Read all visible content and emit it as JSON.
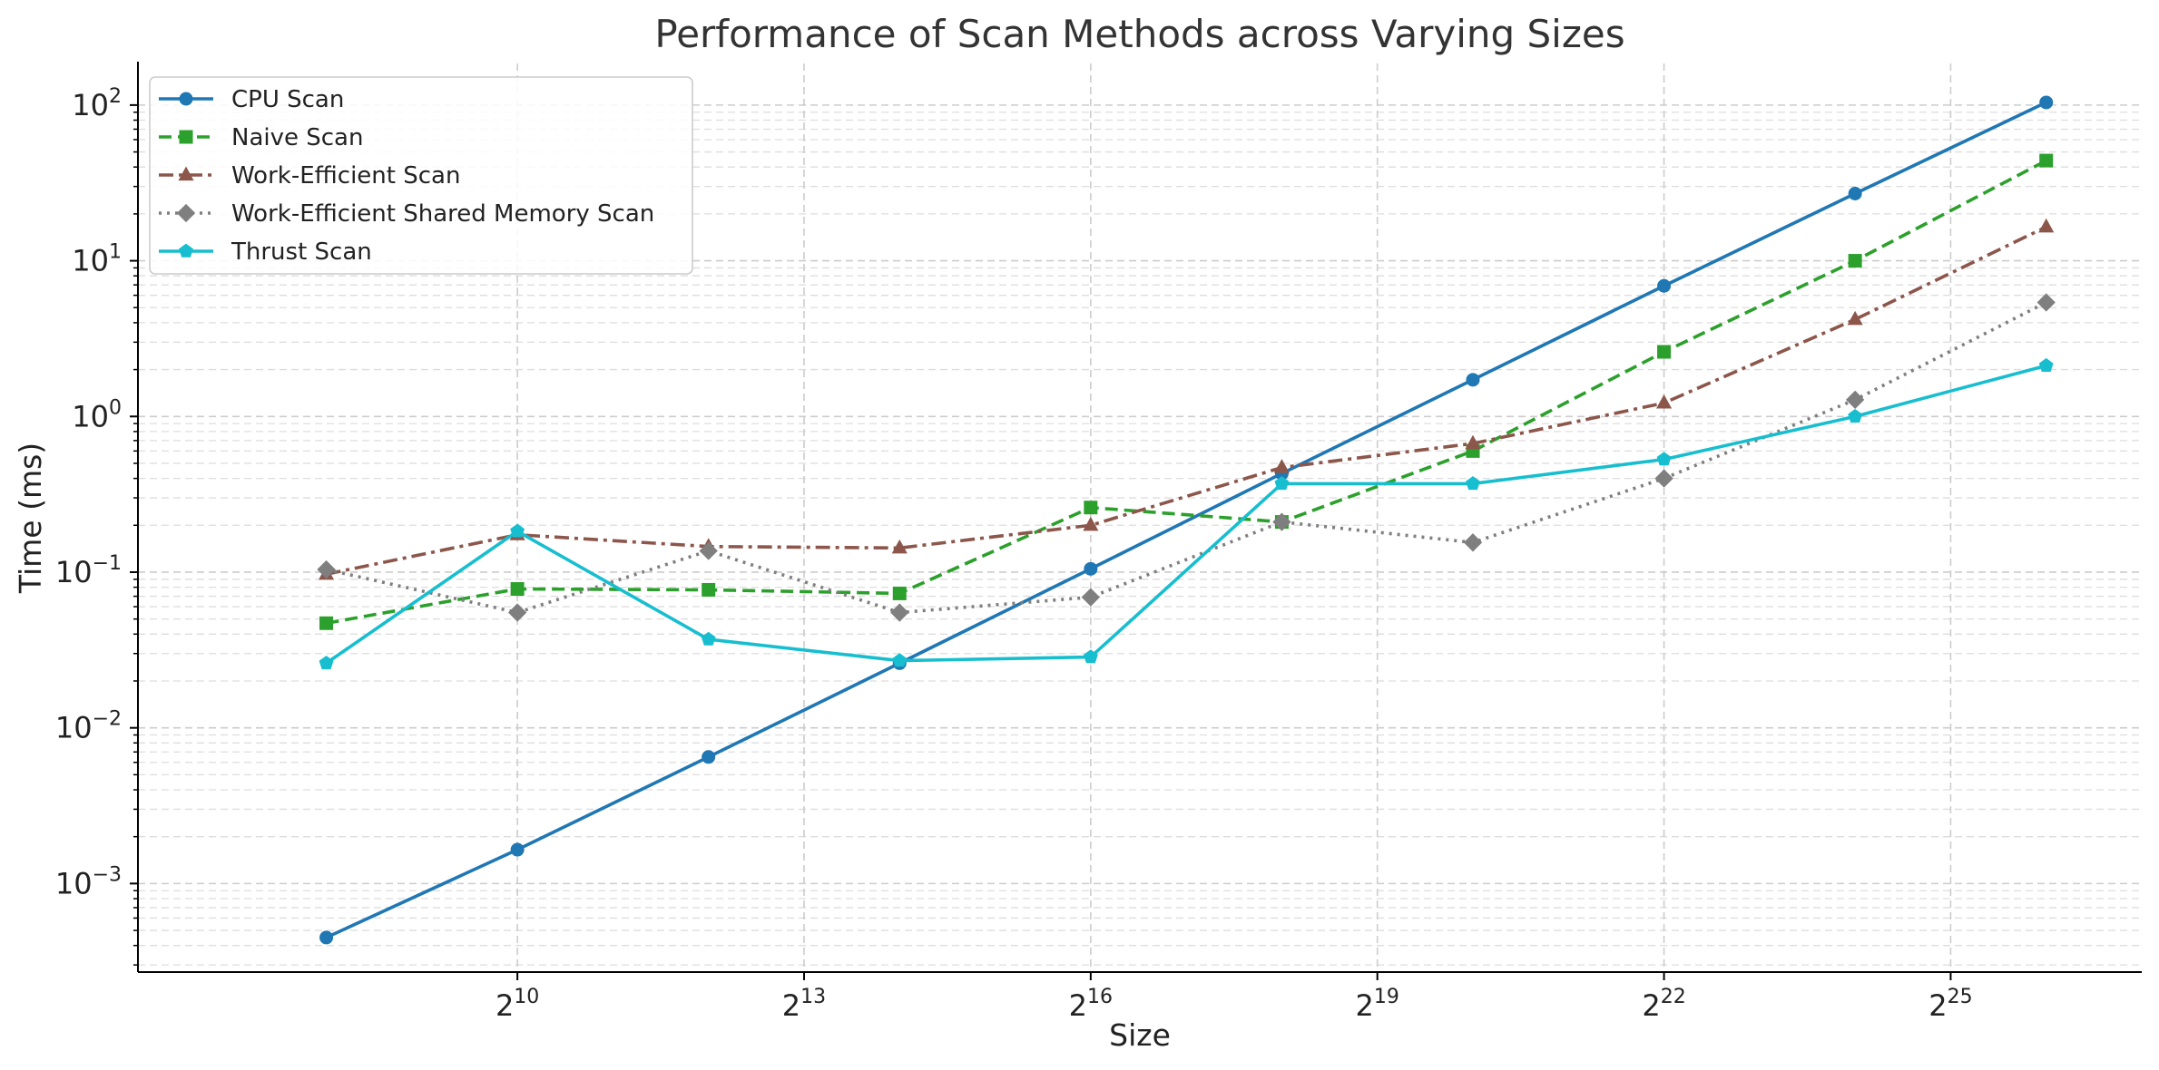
{
  "chart_data": {
    "type": "line",
    "title": "Performance of Scan Methods across Varying Sizes",
    "xlabel": "Size",
    "ylabel": "Time (ms)",
    "x_scale": "log2",
    "y_scale": "log10",
    "x": [
      256,
      1024,
      4096,
      16384,
      65536,
      262144,
      1048576,
      4194304,
      16777216,
      67108864
    ],
    "xlim": [
      65.29,
      134217728
    ],
    "ylim": [
      0.00027,
      185
    ],
    "x_ticks": [
      {
        "value": 1024,
        "base": "2",
        "exp": "10"
      },
      {
        "value": 8192,
        "base": "2",
        "exp": "13"
      },
      {
        "value": 65536,
        "base": "2",
        "exp": "16"
      },
      {
        "value": 524288,
        "base": "2",
        "exp": "19"
      },
      {
        "value": 4194304,
        "base": "2",
        "exp": "22"
      },
      {
        "value": 33554432,
        "base": "2",
        "exp": "25"
      }
    ],
    "y_ticks": [
      {
        "value": 0.001,
        "base": "10",
        "exp": "−3"
      },
      {
        "value": 0.01,
        "base": "10",
        "exp": "−2"
      },
      {
        "value": 0.1,
        "base": "10",
        "exp": "−1"
      },
      {
        "value": 1,
        "base": "10",
        "exp": "0"
      },
      {
        "value": 10,
        "base": "10",
        "exp": "1"
      },
      {
        "value": 100,
        "base": "10",
        "exp": "2"
      }
    ],
    "grid": true,
    "legend_position": "top-left",
    "series": [
      {
        "name": "CPU Scan",
        "color": "#1f77b4",
        "marker": "circle",
        "line_style": "solid",
        "values": [
          0.00045,
          0.00165,
          0.0065,
          0.026,
          0.105,
          0.43,
          1.72,
          6.9,
          27,
          104
        ]
      },
      {
        "name": "Naive Scan",
        "color": "#2ca02c",
        "marker": "square",
        "line_style": "dashed",
        "values": [
          0.047,
          0.078,
          0.077,
          0.073,
          0.26,
          0.21,
          0.6,
          2.6,
          10,
          44
        ]
      },
      {
        "name": "Work-Efficient Scan",
        "color": "#8c564b",
        "marker": "triangle",
        "line_style": "dash-dot",
        "values": [
          0.097,
          0.174,
          0.146,
          0.143,
          0.2,
          0.47,
          0.67,
          1.22,
          4.2,
          16.5
        ]
      },
      {
        "name": "Work-Efficient Shared Memory Scan",
        "color": "#7f7f7f",
        "marker": "diamond",
        "line_style": "dotted",
        "values": [
          0.104,
          0.055,
          0.137,
          0.055,
          0.069,
          0.21,
          0.155,
          0.4,
          1.28,
          5.4
        ]
      },
      {
        "name": "Thrust Scan",
        "color": "#17becf",
        "marker": "pentagon",
        "line_style": "solid",
        "values": [
          0.026,
          0.183,
          0.037,
          0.027,
          0.0285,
          0.37,
          0.37,
          0.53,
          1.0,
          2.12
        ]
      }
    ]
  }
}
